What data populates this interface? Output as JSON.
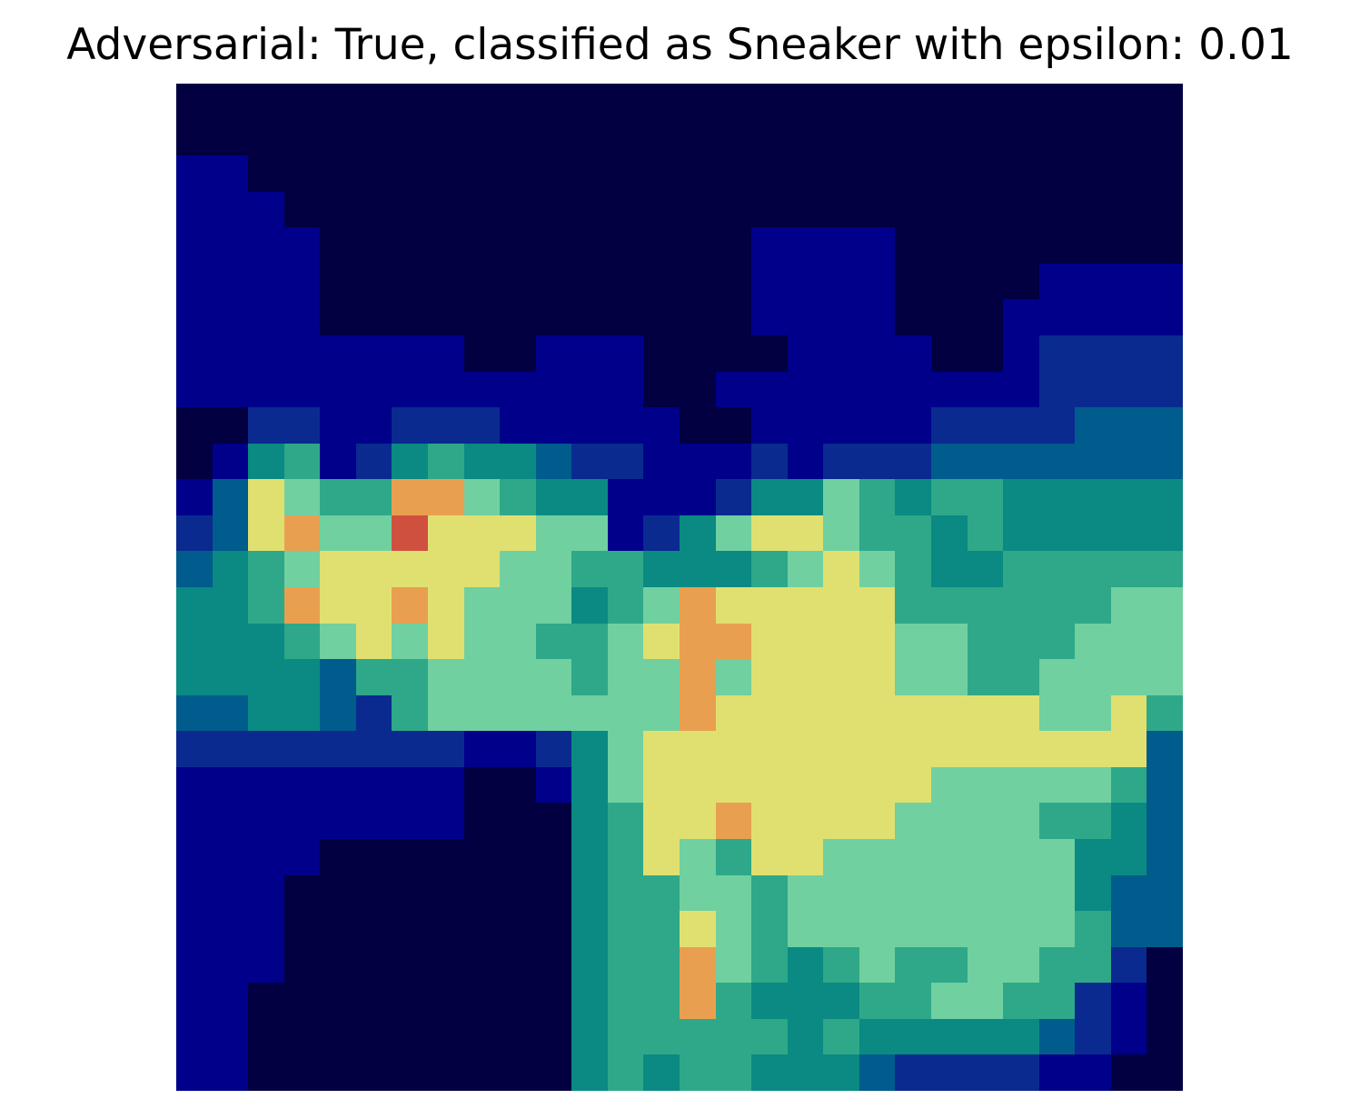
{
  "title": "Adversarial: True, classified as Sneaker with epsilon: 0.01",
  "image": {
    "description": "28x28 pixelated heatmap overlay (jet-like colormap over dark navy)",
    "colormap": [
      "#020040",
      "#00008a",
      "#0a2a90",
      "#005c8c",
      "#0a8a82",
      "#2ea888",
      "#70d0a0",
      "#e0e070",
      "#e8a050",
      "#d05040",
      "#900000"
    ],
    "rows": [
      "0000000000000000000000000000",
      "0000000000000000000000000000",
      "1100000000000000000000000000",
      "1110000000000000000000000000",
      "1111000000000000111100000000",
      "1111000000000000111100001111",
      "1111000000000000111100011111",
      "1111111100111000011110012222",
      "1111111111111001111111112222",
      "0022112221111100111112222333",
      "0145124544322111212223333333",
      "1376558865441112446545544444",
      "2378669777661246776554544444",
      "3456777776655444567654455555",
      "4458778766645687777755555566",
      "4445676766556788777766555666",
      "4444355666656686777766556666",
      "3344325666666687777777776675",
      "2222222211246777777777777773",
      "1111111100146777777776666653",
      "1111111100045778777766665543",
      "1111000000045765776666666443",
      "1110000000045566566666666433",
      "1110000000045576566666666533",
      "1110000000045586545655665520",
      "1100000000045585444556655210",
      "1100000000045555545444443210",
      "1100000000045455444322221100"
    ]
  }
}
